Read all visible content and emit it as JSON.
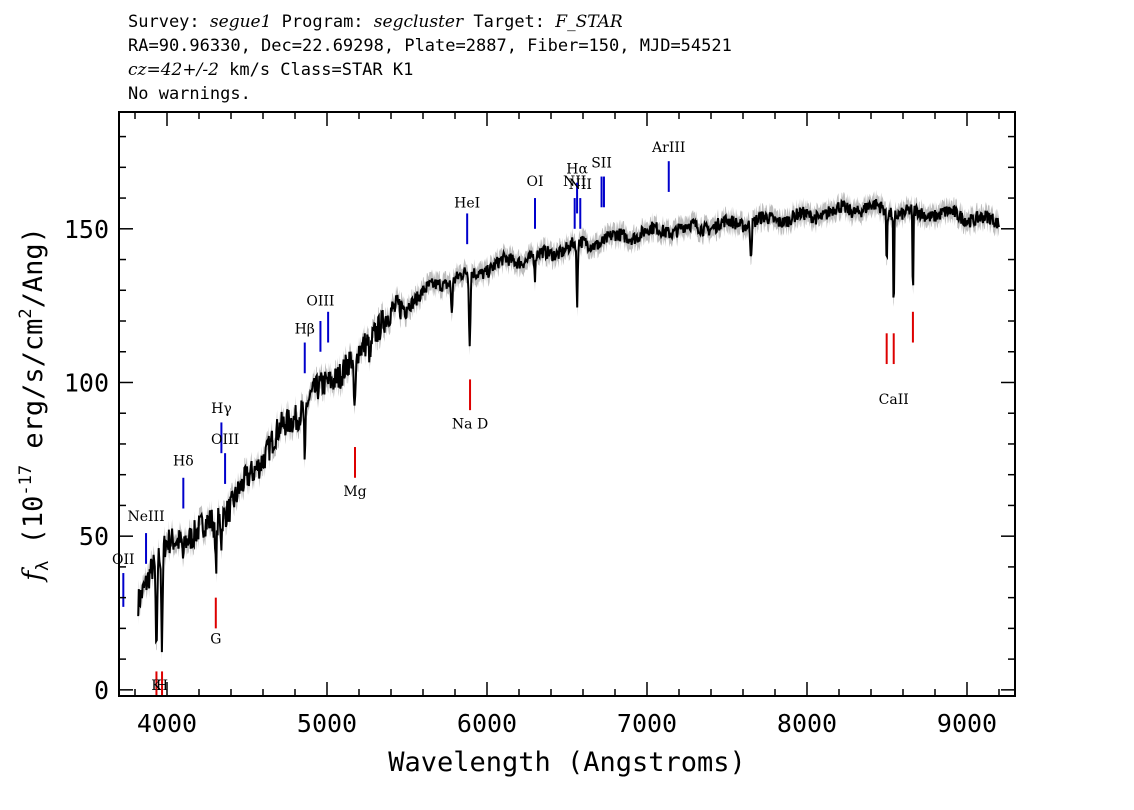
{
  "header": {
    "line1": {
      "survey_label": "Survey:",
      "survey": "segue1",
      "program_label": "Program:",
      "program": "segcluster",
      "target_label": "Target:",
      "target": "F_STAR"
    },
    "line2": "RA=90.96330, Dec=22.69298, Plate=2887, Fiber=150, MJD=54521",
    "line3": {
      "cz": "cz=42+/-2",
      "rest": " km/s Class=STAR K1"
    },
    "line4": "No warnings."
  },
  "chart_data": {
    "type": "line",
    "title": "",
    "xlabel": "Wavelength (Angstroms)",
    "ylabel_main": "f",
    "ylabel_sub": "λ",
    "ylabel_rest": " (10",
    "ylabel_exp": "-17",
    "ylabel_units": " erg/s/cm",
    "ylabel_exp2": "2",
    "ylabel_tail": "/Ang)",
    "xlim": [
      3700,
      9300
    ],
    "ylim": [
      -2,
      188
    ],
    "x_ticks": [
      4000,
      5000,
      6000,
      7000,
      8000,
      9000
    ],
    "x_tick_labels": [
      "4000",
      "5000",
      "6000",
      "7000",
      "8000",
      "9000"
    ],
    "y_ticks": [
      0,
      50,
      100,
      150
    ],
    "y_tick_labels": [
      "0",
      "50",
      "100",
      "150"
    ],
    "grid": false,
    "colors": {
      "spectrum": "#000000",
      "error_band": "#bdbdbd",
      "emission": "#0000cc",
      "absorption": "#dd0000"
    },
    "continuum": [
      [
        3820,
        28
      ],
      [
        3900,
        40
      ],
      [
        4000,
        47
      ],
      [
        4100,
        49
      ],
      [
        4200,
        52
      ],
      [
        4300,
        55
      ],
      [
        4400,
        60
      ],
      [
        4500,
        68
      ],
      [
        4600,
        76
      ],
      [
        4700,
        84
      ],
      [
        4800,
        89
      ],
      [
        4900,
        95
      ],
      [
        5000,
        100
      ],
      [
        5100,
        104
      ],
      [
        5200,
        110
      ],
      [
        5300,
        117
      ],
      [
        5400,
        122
      ],
      [
        5500,
        126
      ],
      [
        5600,
        129
      ],
      [
        5700,
        132
      ],
      [
        5800,
        134
      ],
      [
        5900,
        135
      ],
      [
        6000,
        137
      ],
      [
        6100,
        139
      ],
      [
        6200,
        140
      ],
      [
        6300,
        141
      ],
      [
        6400,
        142
      ],
      [
        6500,
        144
      ],
      [
        6600,
        145
      ],
      [
        6700,
        146
      ],
      [
        6800,
        147
      ],
      [
        6900,
        148
      ],
      [
        7000,
        149
      ],
      [
        7200,
        150
      ],
      [
        7400,
        151
      ],
      [
        7600,
        152
      ],
      [
        7800,
        153
      ],
      [
        8000,
        154
      ],
      [
        8200,
        156
      ],
      [
        8400,
        157
      ],
      [
        8600,
        155
      ],
      [
        8800,
        155
      ],
      [
        9000,
        154
      ],
      [
        9200,
        152
      ]
    ],
    "absorption_features": [
      [
        3934,
        33,
        6
      ],
      [
        3969,
        32,
        6
      ],
      [
        4102,
        6,
        6
      ],
      [
        4305,
        15,
        8
      ],
      [
        4340,
        8,
        5
      ],
      [
        4861,
        22,
        5
      ],
      [
        5173,
        18,
        10
      ],
      [
        5270,
        6,
        8
      ],
      [
        5780,
        10,
        6
      ],
      [
        5892,
        24,
        6
      ],
      [
        6300,
        7,
        5
      ],
      [
        6563,
        22,
        5
      ],
      [
        7650,
        10,
        6
      ],
      [
        8498,
        18,
        4
      ],
      [
        8542,
        35,
        4
      ],
      [
        8662,
        30,
        4
      ]
    ],
    "emission_lines": [
      {
        "name": "OII",
        "x": 3727,
        "y0": 27,
        "y1": 38,
        "label_y": 41
      },
      {
        "name": "NeIII",
        "x": 3869,
        "y0": 41,
        "y1": 51,
        "label_y": 55
      },
      {
        "name": "Hδ",
        "x": 4102,
        "y0": 59,
        "y1": 69,
        "label_y": 73
      },
      {
        "name": "Hγ",
        "x": 4340,
        "y0": 77,
        "y1": 87,
        "label_y": 90
      },
      {
        "name": "OIII",
        "x": 4363,
        "y0": 67,
        "y1": 77,
        "label_y": 80
      },
      {
        "name": "Hβ",
        "x": 4861,
        "y0": 103,
        "y1": 113,
        "label_y": 116
      },
      {
        "name": "OIII",
        "x": 4959,
        "y0": 110,
        "y1": 120,
        "label_y": 125
      },
      {
        "name": "",
        "x": 5007,
        "y0": 113,
        "y1": 123,
        "label_y": 0
      },
      {
        "name": "HeI",
        "x": 5876,
        "y0": 145,
        "y1": 155,
        "label_y": 157
      },
      {
        "name": "OI",
        "x": 6300,
        "y0": 150,
        "y1": 160,
        "label_y": 164
      },
      {
        "name": "NII",
        "x": 6548,
        "y0": 150,
        "y1": 160,
        "label_y": 164
      },
      {
        "name": "Hα",
        "x": 6563,
        "y0": 155,
        "y1": 165,
        "label_y": 168
      },
      {
        "name": "NII",
        "x": 6583,
        "y0": 150,
        "y1": 160,
        "label_y": 163
      },
      {
        "name": "SII",
        "x": 6716,
        "y0": 157,
        "y1": 167,
        "label_y": 170
      },
      {
        "name": "",
        "x": 6731,
        "y0": 157,
        "y1": 167,
        "label_y": 0
      },
      {
        "name": "ArIII",
        "x": 7136,
        "y0": 162,
        "y1": 172,
        "label_y": 175
      }
    ],
    "absorption_lines": [
      {
        "name": "K",
        "x": 3934,
        "y0": -2,
        "y1": 6,
        "label_y": 0
      },
      {
        "name": "H",
        "x": 3969,
        "y0": -2,
        "y1": 6,
        "label_y": 0
      },
      {
        "name": "G",
        "x": 4305,
        "y0": 20,
        "y1": 30,
        "label_y": 15
      },
      {
        "name": "Mg",
        "x": 5175,
        "y0": 69,
        "y1": 79,
        "label_y": 63
      },
      {
        "name": "Na  D",
        "x": 5894,
        "y0": 91,
        "y1": 101,
        "label_y": 85
      },
      {
        "name": "",
        "x": 8498,
        "y0": 106,
        "y1": 116,
        "label_y": 0
      },
      {
        "name": "CaII",
        "x": 8542,
        "y0": 106,
        "y1": 116,
        "label_y": 93
      },
      {
        "name": "",
        "x": 8662,
        "y0": 113,
        "y1": 123,
        "label_y": 0
      }
    ]
  }
}
